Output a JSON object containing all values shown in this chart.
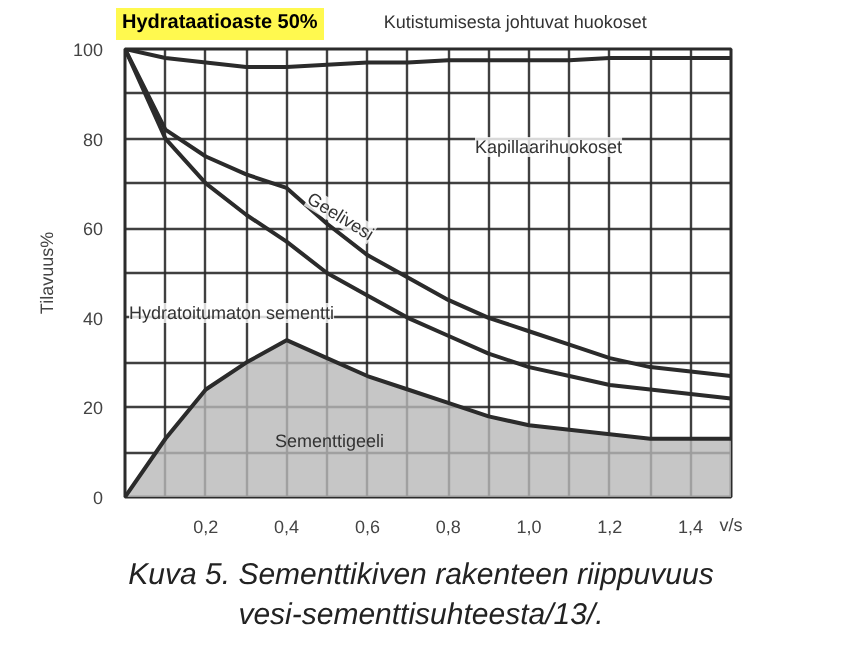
{
  "chart_data": {
    "type": "line",
    "title": "Hydrataatioaste 50%",
    "xlabel": "v/s",
    "ylabel": "Tilavuus%",
    "x": [
      0,
      0.1,
      0.2,
      0.3,
      0.4,
      0.5,
      0.6,
      0.7,
      0.8,
      0.9,
      1.0,
      1.1,
      1.2,
      1.3,
      1.4,
      1.5
    ],
    "series": [
      {
        "color": "#2b2b2b",
        "values": [
          100,
          98,
          97,
          96,
          96,
          96.5,
          97,
          97,
          97.5,
          97.5,
          97.5,
          97.5,
          98,
          98,
          98,
          98
        ]
      },
      {
        "color": "#2b2b2b",
        "values": [
          100,
          82,
          76,
          72,
          69,
          61,
          54,
          49,
          44,
          40,
          37,
          34,
          31,
          29,
          28,
          27
        ]
      },
      {
        "color": "#2b2b2b",
        "values": [
          100,
          80,
          70,
          63,
          57,
          50,
          45,
          40,
          36,
          32,
          29,
          27,
          25,
          24,
          23,
          22
        ]
      },
      {
        "type": "area",
        "color": "#b8b8b8",
        "values": [
          0,
          13,
          24,
          30,
          35,
          31,
          27,
          24,
          21,
          18,
          16,
          15,
          14,
          13,
          13,
          13
        ]
      }
    ],
    "xlim": [
      0,
      1.5
    ],
    "ylim": [
      0,
      100
    ],
    "xticks": [
      {
        "value": 0.1,
        "label": null
      },
      {
        "value": 0.2,
        "label": "0,2"
      },
      {
        "value": 0.3,
        "label": null
      },
      {
        "value": 0.4,
        "label": "0,4"
      },
      {
        "value": 0.5,
        "label": null
      },
      {
        "value": 0.6,
        "label": "0,6"
      },
      {
        "value": 0.7,
        "label": null
      },
      {
        "value": 0.8,
        "label": "0,8"
      },
      {
        "value": 0.9,
        "label": null
      },
      {
        "value": 1.0,
        "label": "1,0"
      },
      {
        "value": 1.1,
        "label": null
      },
      {
        "value": 1.2,
        "label": "1,2"
      },
      {
        "value": 1.3,
        "label": null
      },
      {
        "value": 1.4,
        "label": "1,4"
      }
    ],
    "yticks": [
      0,
      {
        "value": 10,
        "label": null
      },
      20,
      {
        "value": 30,
        "label": null
      },
      40,
      {
        "value": 50,
        "label": null
      },
      60,
      {
        "value": 70,
        "label": null
      },
      80,
      {
        "value": 90,
        "label": null
      },
      100
    ],
    "grid": true,
    "annotations": [
      "Kutistumisesta johtuvat huokoset",
      "Kapillaarihuokoset",
      "Geelivesi",
      "Hydratoitumaton sementti",
      "Sementtigeeli",
      "Kuva 5. Sementtikiven rakenteen riippuvuus vesi-sementtisuhteesta/13/."
    ]
  }
}
